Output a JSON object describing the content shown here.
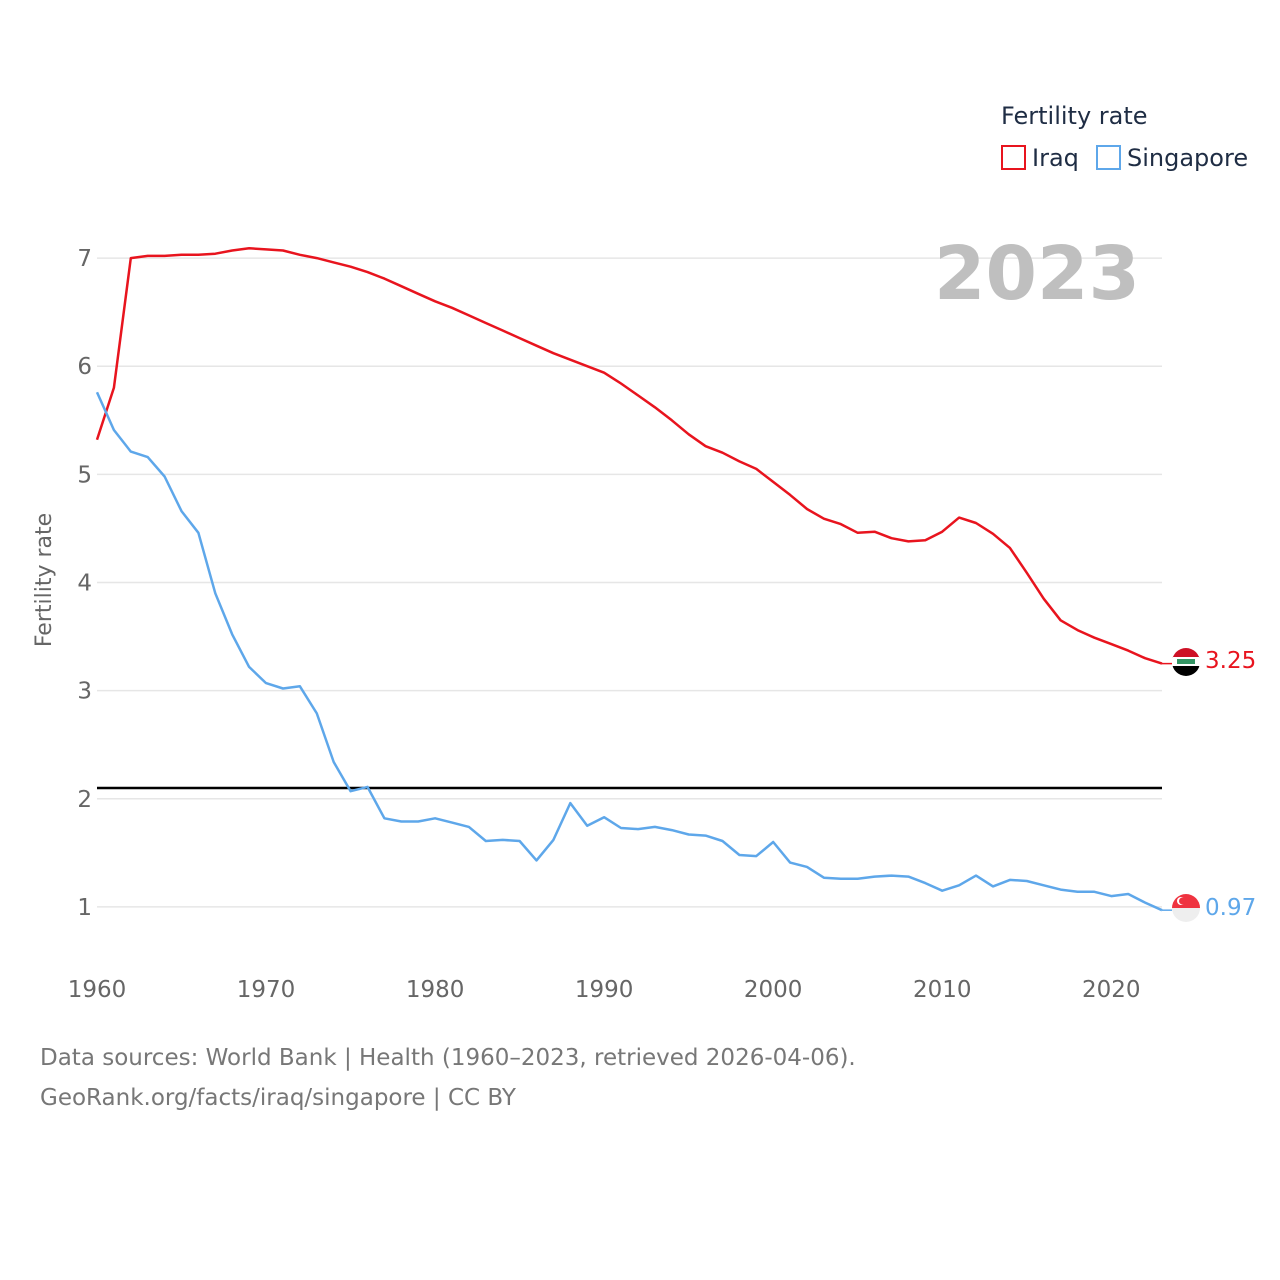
{
  "chart_data": {
    "type": "line",
    "title": "Fertility rate",
    "ylabel": "Fertility rate",
    "xlabel": "",
    "xlim": [
      1960,
      2023
    ],
    "ylim": [
      0.5,
      7.5
    ],
    "xticks": [
      1960,
      1970,
      1980,
      1990,
      2000,
      2010,
      2020
    ],
    "yticks": [
      1,
      2,
      3,
      4,
      5,
      6,
      7
    ],
    "grid": true,
    "legend": "top-right",
    "year_label": "2023",
    "reference_line": 2.1,
    "series": [
      {
        "name": "Iraq",
        "color": "#e8141e",
        "end_label": "3.25",
        "flag": "iraq-flag",
        "x": [
          1960,
          1961,
          1962,
          1963,
          1964,
          1965,
          1966,
          1967,
          1968,
          1969,
          1970,
          1971,
          1972,
          1973,
          1974,
          1975,
          1976,
          1977,
          1978,
          1979,
          1980,
          1981,
          1982,
          1983,
          1984,
          1985,
          1986,
          1987,
          1988,
          1989,
          1990,
          1991,
          1992,
          1993,
          1994,
          1995,
          1996,
          1997,
          1998,
          1999,
          2000,
          2001,
          2002,
          2003,
          2004,
          2005,
          2006,
          2007,
          2008,
          2009,
          2010,
          2011,
          2012,
          2013,
          2014,
          2015,
          2016,
          2017,
          2018,
          2019,
          2020,
          2021,
          2022,
          2023
        ],
        "values": [
          5.32,
          5.8,
          7.0,
          7.02,
          7.02,
          7.03,
          7.03,
          7.04,
          7.07,
          7.09,
          7.08,
          7.07,
          7.03,
          7.0,
          6.96,
          6.92,
          6.87,
          6.81,
          6.74,
          6.67,
          6.6,
          6.54,
          6.47,
          6.4,
          6.33,
          6.26,
          6.19,
          6.12,
          6.06,
          6.0,
          5.94,
          5.84,
          5.73,
          5.62,
          5.5,
          5.37,
          5.26,
          5.2,
          5.12,
          5.05,
          4.93,
          4.81,
          4.68,
          4.59,
          4.54,
          4.46,
          4.47,
          4.41,
          4.38,
          4.39,
          4.47,
          4.6,
          4.55,
          4.45,
          4.32,
          4.09,
          3.85,
          3.65,
          3.56,
          3.49,
          3.43,
          3.37,
          3.3,
          3.25
        ]
      },
      {
        "name": "Singapore",
        "color": "#5ea7ea",
        "end_label": "0.97",
        "flag": "singapore-flag",
        "x": [
          1960,
          1961,
          1962,
          1963,
          1964,
          1965,
          1966,
          1967,
          1968,
          1969,
          1970,
          1971,
          1972,
          1973,
          1974,
          1975,
          1976,
          1977,
          1978,
          1979,
          1980,
          1981,
          1982,
          1983,
          1984,
          1985,
          1986,
          1987,
          1988,
          1989,
          1990,
          1991,
          1992,
          1993,
          1994,
          1995,
          1996,
          1997,
          1998,
          1999,
          2000,
          2001,
          2002,
          2003,
          2004,
          2005,
          2006,
          2007,
          2008,
          2009,
          2010,
          2011,
          2012,
          2013,
          2014,
          2015,
          2016,
          2017,
          2018,
          2019,
          2020,
          2021,
          2022,
          2023
        ],
        "values": [
          5.76,
          5.41,
          5.21,
          5.16,
          4.98,
          4.66,
          4.46,
          3.9,
          3.52,
          3.22,
          3.07,
          3.02,
          3.04,
          2.79,
          2.34,
          2.07,
          2.11,
          1.82,
          1.79,
          1.79,
          1.82,
          1.78,
          1.74,
          1.61,
          1.62,
          1.61,
          1.43,
          1.62,
          1.96,
          1.75,
          1.83,
          1.73,
          1.72,
          1.74,
          1.71,
          1.67,
          1.66,
          1.61,
          1.48,
          1.47,
          1.6,
          1.41,
          1.37,
          1.27,
          1.26,
          1.26,
          1.28,
          1.29,
          1.28,
          1.22,
          1.15,
          1.2,
          1.29,
          1.19,
          1.25,
          1.24,
          1.2,
          1.16,
          1.14,
          1.14,
          1.1,
          1.12,
          1.04,
          0.97
        ]
      }
    ]
  },
  "footer": {
    "line1": "Data sources: World Bank | Health (1960–2023, retrieved 2026-04-06).",
    "line2": "GeoRank.org/facts/iraq/singapore | CC BY"
  }
}
